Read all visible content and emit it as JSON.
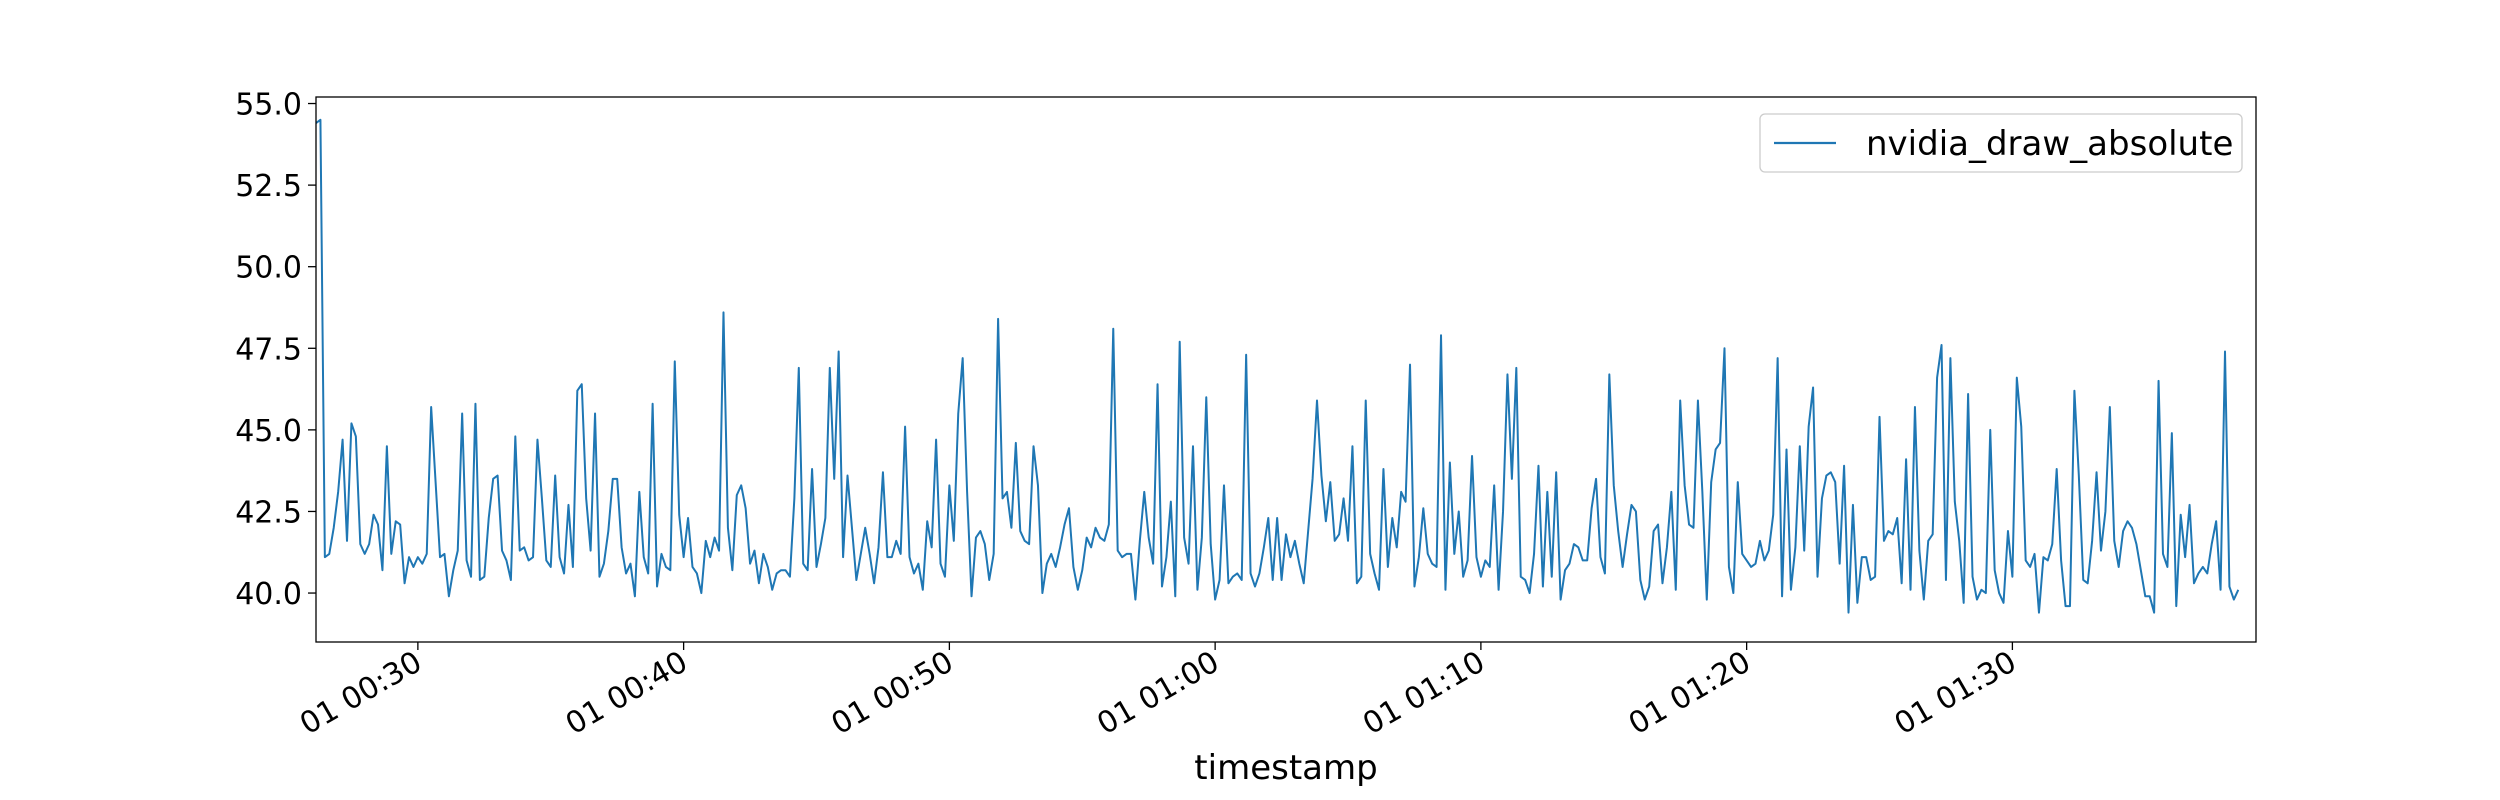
{
  "chart_data": {
    "type": "line",
    "title": "",
    "xlabel": "timestamp",
    "ylabel": "",
    "ylim": [
      38.5,
      55.2
    ],
    "xlim": [
      "00:26:10",
      "01:39:10"
    ],
    "x_ticks": [
      "01 00:30",
      "01 00:40",
      "01 00:50",
      "01 01:00",
      "01 01:10",
      "01 01:20",
      "01 01:30"
    ],
    "y_ticks": [
      "40.0",
      "42.5",
      "45.0",
      "47.5",
      "50.0",
      "52.5",
      "55.0"
    ],
    "grid": false,
    "legend_position": "top-right",
    "sampling": {
      "start": "00:26:10",
      "interval_seconds": 10
    },
    "series": [
      {
        "name": "nvidia_draw_absolute",
        "color": "#1f77b4",
        "values": [
          54.4,
          54.5,
          41.1,
          41.2,
          42.0,
          43.1,
          44.7,
          41.6,
          45.2,
          44.8,
          41.5,
          41.2,
          41.5,
          42.4,
          42.1,
          40.7,
          44.5,
          41.2,
          42.2,
          42.1,
          40.3,
          41.1,
          40.8,
          41.1,
          40.9,
          41.2,
          45.7,
          43.4,
          41.1,
          41.2,
          39.9,
          40.7,
          41.3,
          45.5,
          41.0,
          40.5,
          45.8,
          40.4,
          40.5,
          42.3,
          43.5,
          43.6,
          41.3,
          41.0,
          40.4,
          44.8,
          41.3,
          41.4,
          41.0,
          41.1,
          44.7,
          42.9,
          41.0,
          40.8,
          43.6,
          41.1,
          40.6,
          42.7,
          40.8,
          46.2,
          46.4,
          42.9,
          41.3,
          45.5,
          40.5,
          40.9,
          41.9,
          43.5,
          43.5,
          41.4,
          40.6,
          40.9,
          39.9,
          43.1,
          41.1,
          40.6,
          45.8,
          40.2,
          41.2,
          40.8,
          40.7,
          47.1,
          42.4,
          41.1,
          42.3,
          40.8,
          40.6,
          40.0,
          41.6,
          41.1,
          41.7,
          41.3,
          48.6,
          42.0,
          40.7,
          43.0,
          43.3,
          42.6,
          40.9,
          41.3,
          40.3,
          41.2,
          40.8,
          40.1,
          40.6,
          40.7,
          40.7,
          40.5,
          42.9,
          46.9,
          40.9,
          40.7,
          43.8,
          40.8,
          41.5,
          42.3,
          46.9,
          43.5,
          47.4,
          41.1,
          43.6,
          42.0,
          40.4,
          41.2,
          42.0,
          41.2,
          40.3,
          41.4,
          43.7,
          41.1,
          41.1,
          41.6,
          41.2,
          45.1,
          41.1,
          40.6,
          40.9,
          40.1,
          42.2,
          41.4,
          44.7,
          40.9,
          40.5,
          43.3,
          41.6,
          45.5,
          47.2,
          43.1,
          39.9,
          41.7,
          41.9,
          41.5,
          40.4,
          41.2,
          48.4,
          42.9,
          43.1,
          42.0,
          44.6,
          41.9,
          41.6,
          41.5,
          44.5,
          43.3,
          40.0,
          40.9,
          41.2,
          40.8,
          41.4,
          42.1,
          42.6,
          40.8,
          40.1,
          40.7,
          41.7,
          41.4,
          42.0,
          41.7,
          41.6,
          42.1,
          48.1,
          41.3,
          41.1,
          41.2,
          41.2,
          39.8,
          41.6,
          43.1,
          41.7,
          40.9,
          46.4,
          40.2,
          41.1,
          42.8,
          39.9,
          47.7,
          41.7,
          40.9,
          44.5,
          40.1,
          41.7,
          46.0,
          41.5,
          39.8,
          40.4,
          43.3,
          40.3,
          40.5,
          40.6,
          40.4,
          47.3,
          40.6,
          40.2,
          40.6,
          41.4,
          42.3,
          40.4,
          42.3,
          40.4,
          41.8,
          41.1,
          41.6,
          40.9,
          40.3,
          41.9,
          43.5,
          45.9,
          43.6,
          42.2,
          43.4,
          41.6,
          41.8,
          42.9,
          41.6,
          44.5,
          40.3,
          40.5,
          45.9,
          41.2,
          40.6,
          40.1,
          43.8,
          40.8,
          42.3,
          41.4,
          43.1,
          42.8,
          47.0,
          40.2,
          41.1,
          42.6,
          41.2,
          40.9,
          40.8,
          47.9,
          40.1,
          44.0,
          41.2,
          42.5,
          40.5,
          41.0,
          44.2,
          41.1,
          40.5,
          41.0,
          40.8,
          43.3,
          40.1,
          42.5,
          46.7,
          43.5,
          46.9,
          40.5,
          40.4,
          40.0,
          41.2,
          43.9,
          40.2,
          43.1,
          40.5,
          43.7,
          39.8,
          40.7,
          40.9,
          41.5,
          41.4,
          41.0,
          41.0,
          42.6,
          43.5,
          41.1,
          40.6,
          46.7,
          43.3,
          41.9,
          40.8,
          41.8,
          42.7,
          42.5,
          40.4,
          39.8,
          40.2,
          41.9,
          42.1,
          40.3,
          41.4,
          43.1,
          40.1,
          45.9,
          43.3,
          42.1,
          42.0,
          45.9,
          43.1,
          39.8,
          43.4,
          44.4,
          44.6,
          47.5,
          40.8,
          40.0,
          43.4,
          41.2,
          41.0,
          40.8,
          40.9,
          41.6,
          41.0,
          41.3,
          42.4,
          47.2,
          39.9,
          44.4,
          40.1,
          41.4,
          44.5,
          41.3,
          45.1,
          46.3,
          40.5,
          42.9,
          43.6,
          43.7,
          43.4,
          40.9,
          43.9,
          39.4,
          42.7,
          39.7,
          41.1,
          41.1,
          40.4,
          40.5,
          45.4,
          41.6,
          41.9,
          41.8,
          42.3,
          40.3,
          44.1,
          40.1,
          45.7,
          41.3,
          39.8,
          41.6,
          41.8,
          46.6,
          47.6,
          40.4,
          47.2,
          42.8,
          41.6,
          39.7,
          46.1,
          40.5,
          39.8,
          40.1,
          40.0,
          45.0,
          40.7,
          40.0,
          39.7,
          41.9,
          40.5,
          46.6,
          45.1,
          41.0,
          40.8,
          41.2,
          39.4,
          41.1,
          41.0,
          41.5,
          43.8,
          41.0,
          39.6,
          39.6,
          46.2,
          43.6,
          40.4,
          40.3,
          41.6,
          43.7,
          41.3,
          42.5,
          45.7,
          41.6,
          40.8,
          41.9,
          42.2,
          42.0,
          41.5,
          40.7,
          39.9,
          39.9,
          39.4,
          46.5,
          41.2,
          40.8,
          44.9,
          39.6,
          42.4,
          41.1,
          42.7,
          40.3,
          40.6,
          40.8,
          40.6,
          41.5,
          42.2,
          40.1,
          47.4,
          40.2,
          39.8,
          40.1
        ]
      }
    ]
  }
}
